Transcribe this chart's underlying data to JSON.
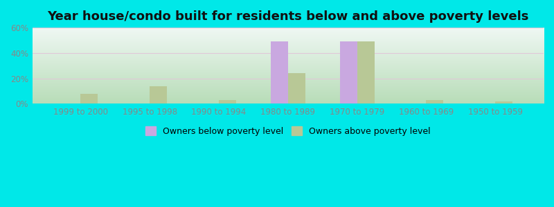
{
  "title": "Year house/condo built for residents below and above poverty levels",
  "categories": [
    "1999 to 2000",
    "1995 to 1998",
    "1990 to 1994",
    "1980 to 1989",
    "1970 to 1979",
    "1960 to 1969",
    "1950 to 1959"
  ],
  "below_poverty": [
    0,
    0,
    0,
    49,
    49,
    0,
    0
  ],
  "above_poverty": [
    8,
    14,
    3,
    24,
    49,
    3,
    2
  ],
  "below_color": "#c9a8e0",
  "above_color": "#b8c896",
  "background_outer": "#00e8e8",
  "background_top": "#f0f8f4",
  "background_bottom": "#b8ddb8",
  "grid_color": "#e0c8d8",
  "ylim": [
    0,
    60
  ],
  "yticks": [
    0,
    20,
    40,
    60
  ],
  "ytick_labels": [
    "0%",
    "20%",
    "40%",
    "60%"
  ],
  "legend_below_label": "Owners below poverty level",
  "legend_above_label": "Owners above poverty level",
  "bar_width": 0.25,
  "title_fontsize": 13,
  "axis_fontsize": 8.5,
  "legend_fontsize": 9,
  "tick_color": "#888888"
}
